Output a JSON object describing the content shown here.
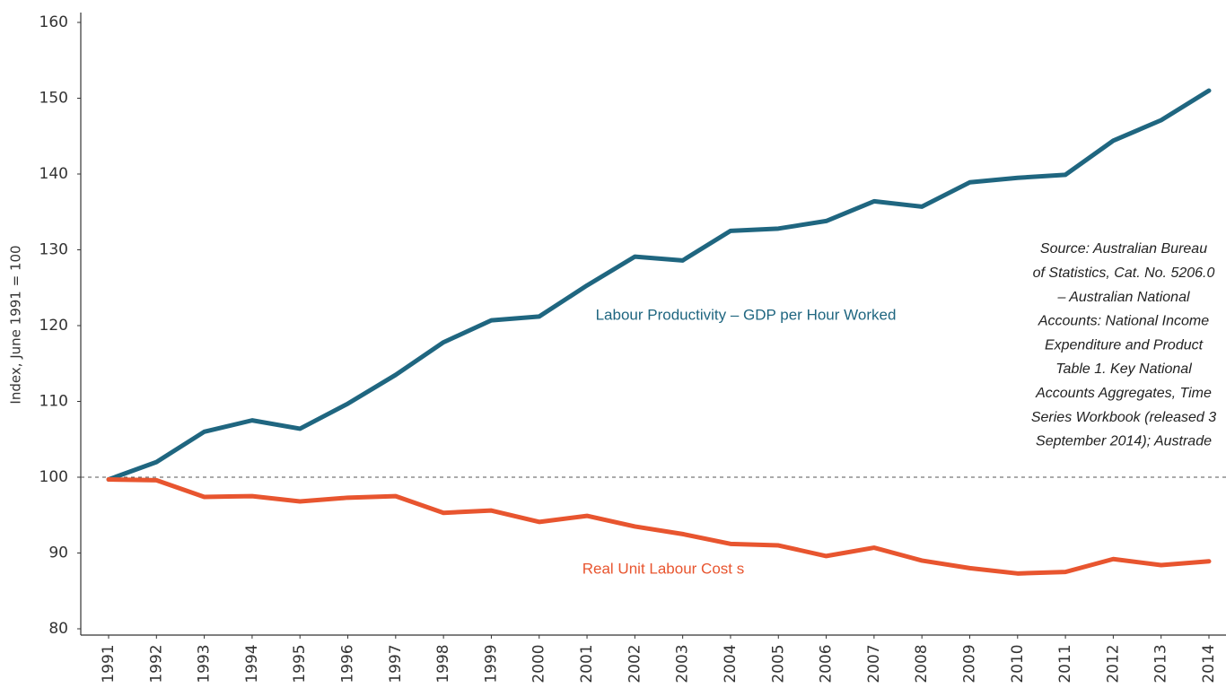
{
  "chart_data": {
    "type": "line",
    "y_axis_label": "Index, June 1991 = 100",
    "x": [
      "1991",
      "1992",
      "1993",
      "1994",
      "1995",
      "1996",
      "1997",
      "1998",
      "1999",
      "2000",
      "2001",
      "2002",
      "2003",
      "2004",
      "2005",
      "2006",
      "2007",
      "2008",
      "2009",
      "2010",
      "2011",
      "2012",
      "2013",
      "2014"
    ],
    "series": [
      {
        "name": "Labour Productivity – GDP per Hour Worked",
        "color": "#1f6680",
        "values": [
          99.7,
          102.0,
          106.0,
          107.5,
          106.4,
          109.7,
          113.5,
          117.8,
          120.7,
          121.2,
          125.3,
          129.1,
          128.6,
          132.5,
          132.8,
          133.8,
          136.4,
          135.7,
          138.9,
          139.5,
          139.9,
          144.4,
          147.1,
          151.0
        ]
      },
      {
        "name": "Real Unit Labour Cost s",
        "color": "#e8552f",
        "values": [
          99.7,
          99.6,
          97.4,
          97.5,
          96.8,
          97.3,
          97.5,
          95.3,
          95.6,
          94.1,
          94.9,
          93.5,
          92.5,
          91.2,
          91.0,
          89.6,
          90.7,
          89.0,
          88.0,
          87.3,
          87.5,
          89.2,
          88.4,
          88.9
        ]
      }
    ],
    "reference_line": 100,
    "source_note": [
      "Source: Australian Bureau",
      "of Statistics, Cat. No. 5206.0",
      "– Australian National",
      "Accounts: National Income",
      "Expenditure and Product",
      "Table 1. Key National",
      "Accounts Aggregates, Time",
      "Series Workbook (released 3",
      "September 2014); Austrade"
    ],
    "ylim": [
      80,
      160
    ],
    "yticks": [
      80,
      90,
      100,
      110,
      120,
      130,
      140,
      150,
      160
    ],
    "grid": false
  }
}
